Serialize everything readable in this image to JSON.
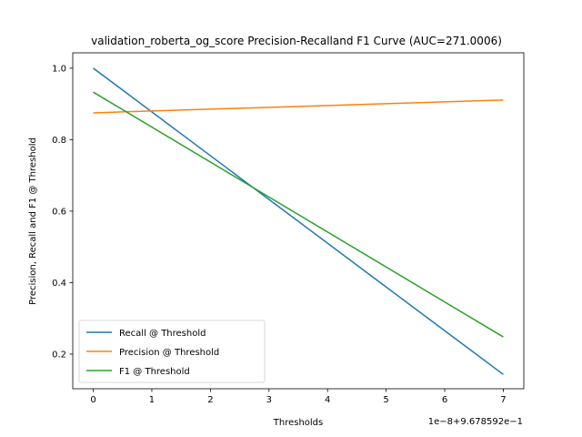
{
  "chart_data": {
    "type": "line",
    "title": "validation_roberta_og_score Precision-Recalland F1  Curve (AUC=271.0006)",
    "xlabel": "Thresholds",
    "ylabel": "Precision, Recall and F1 @ Threshold",
    "x_offset_label": "1e−8+9.678592e−1",
    "xlim": [
      -0.35,
      7.35
    ],
    "ylim": [
      0.103,
      1.043
    ],
    "x_ticks": [
      0,
      1,
      2,
      3,
      4,
      5,
      6,
      7
    ],
    "x_tick_labels": [
      "0",
      "1",
      "2",
      "3",
      "4",
      "5",
      "6",
      "7"
    ],
    "y_ticks": [
      0.2,
      0.4,
      0.6,
      0.8,
      1.0
    ],
    "y_tick_labels": [
      "0.2",
      "0.4",
      "0.6",
      "0.8",
      "1.0"
    ],
    "legend_position": "lower-left",
    "grid": false,
    "series": [
      {
        "name": "Recall @ Threshold",
        "color": "#1f77b4",
        "x": [
          0,
          7
        ],
        "y": [
          1.0,
          0.143
        ]
      },
      {
        "name": "Precision @ Threshold",
        "color": "#ff7f0e",
        "x": [
          0,
          7
        ],
        "y": [
          0.875,
          0.911
        ]
      },
      {
        "name": "F1 @ Threshold",
        "color": "#2ca02c",
        "x": [
          0,
          7
        ],
        "y": [
          0.933,
          0.248
        ]
      }
    ]
  }
}
